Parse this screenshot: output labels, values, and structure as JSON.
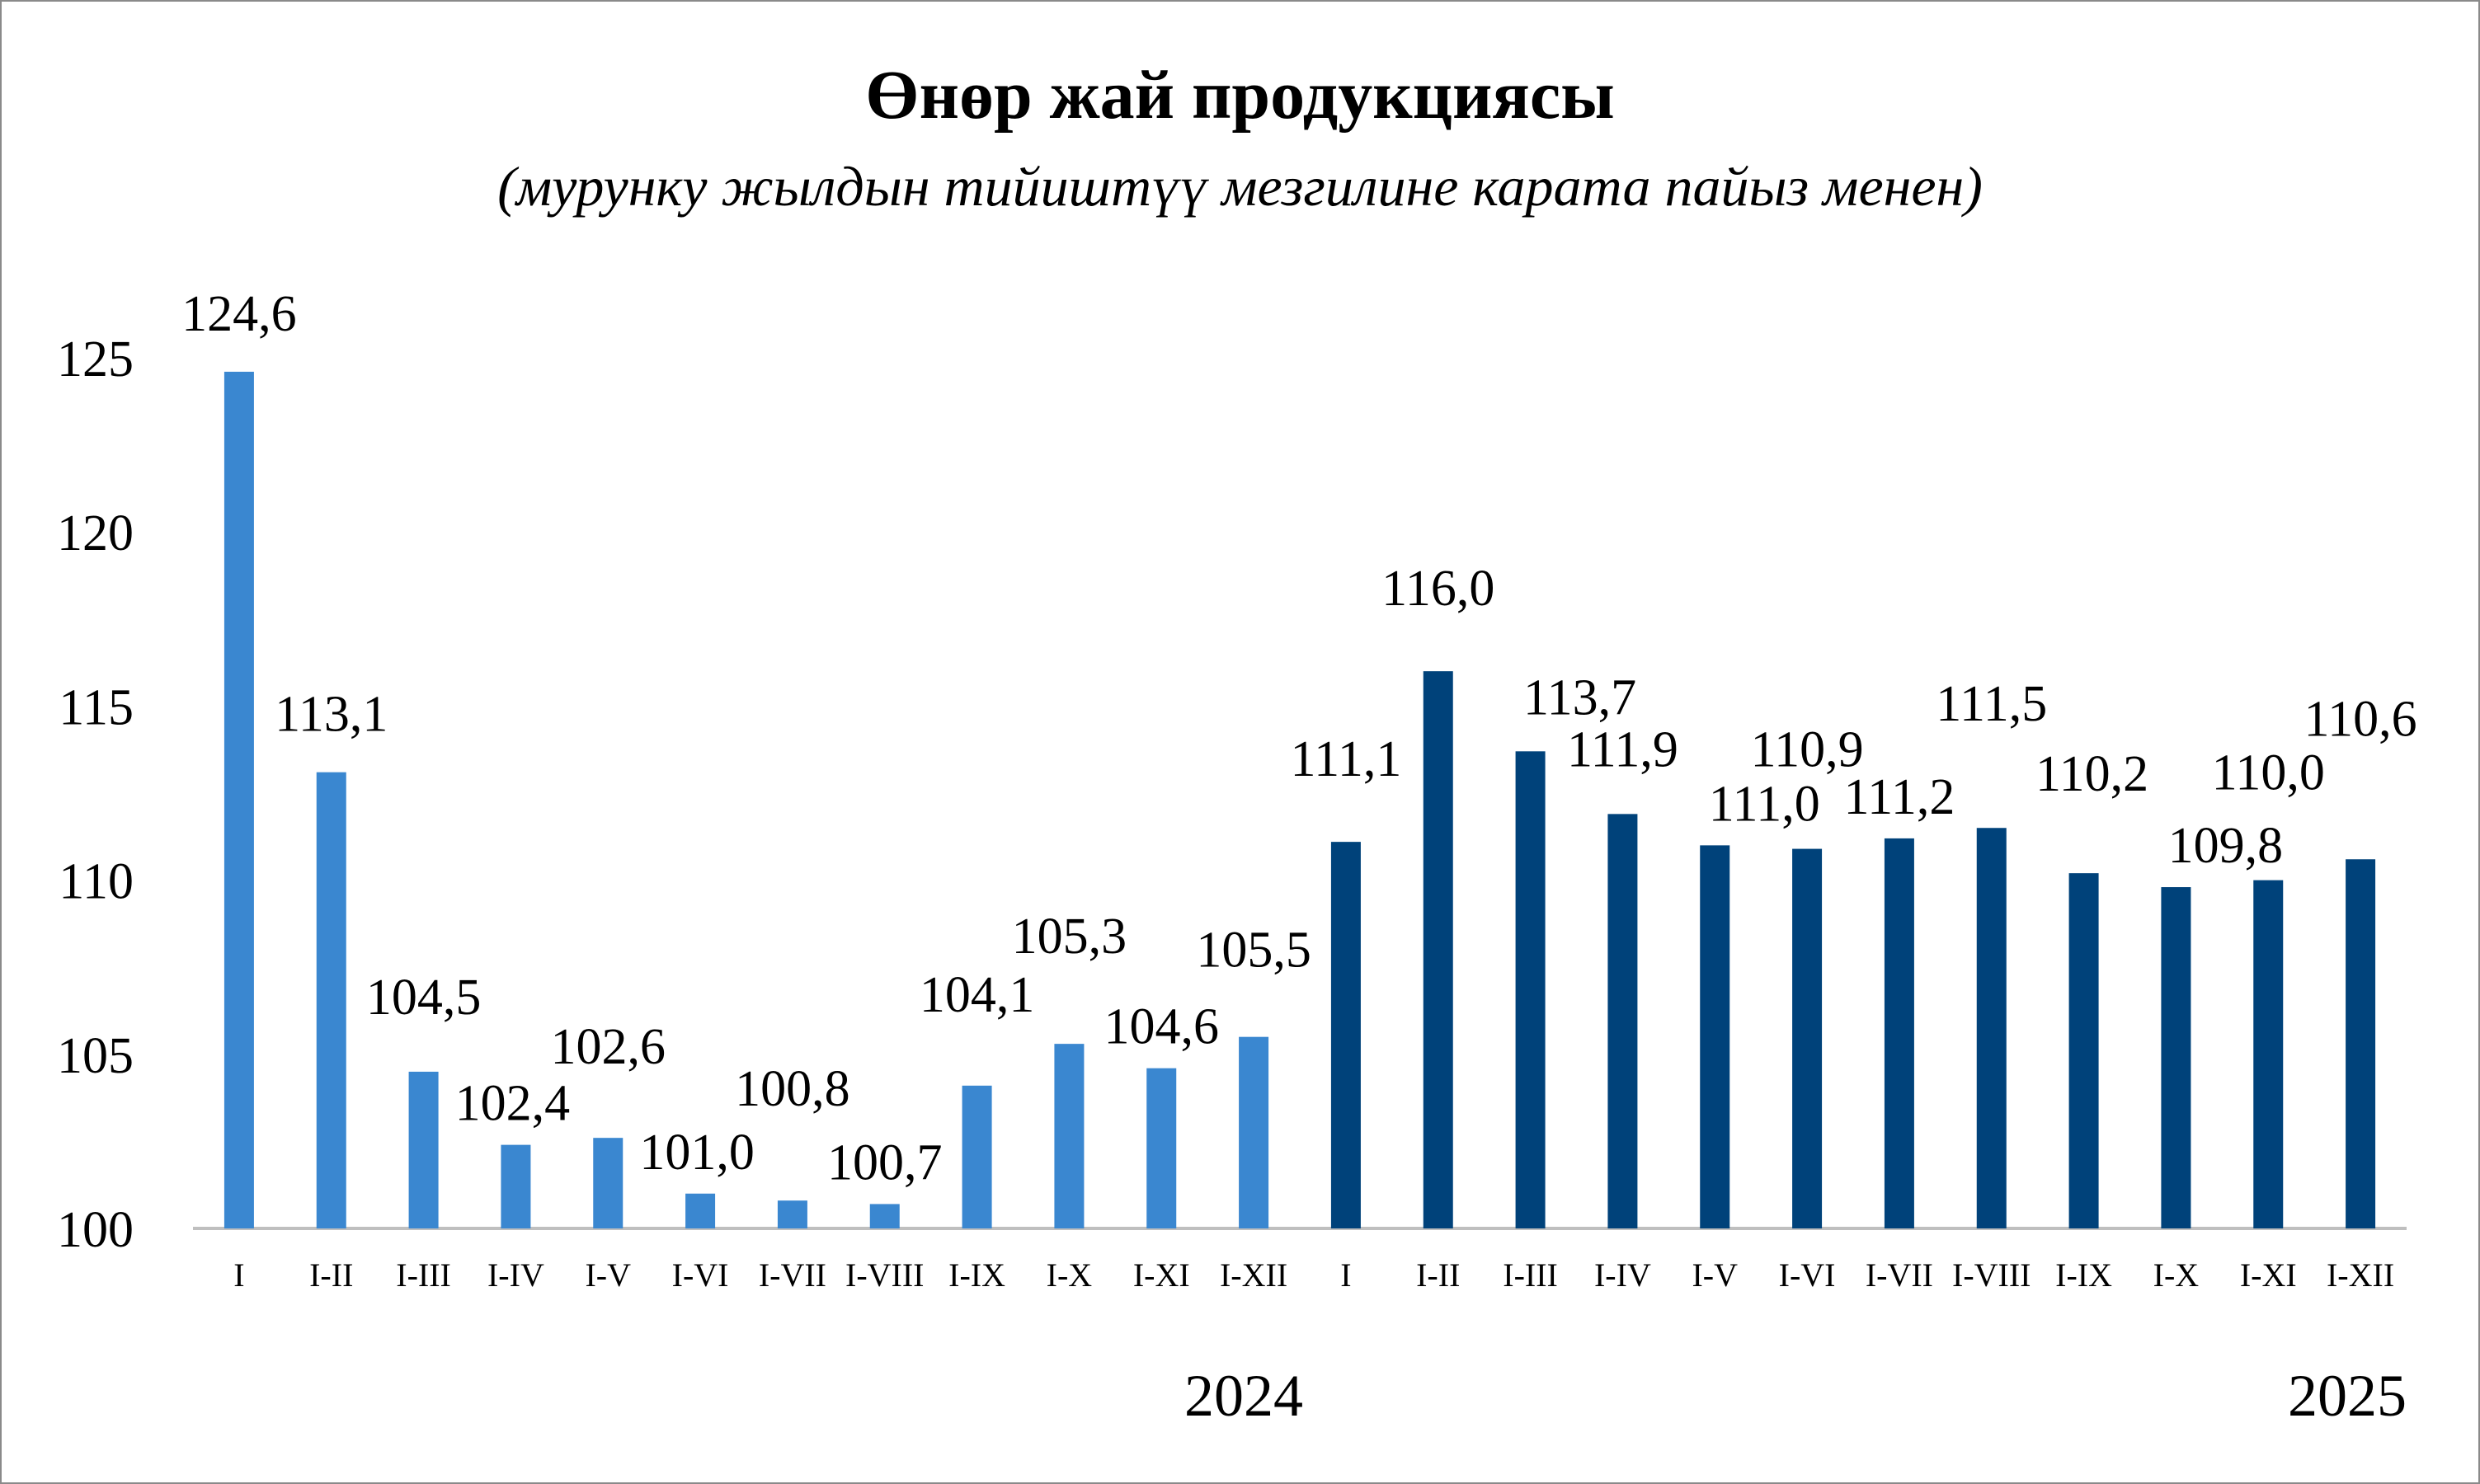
{
  "chart_data": {
    "type": "bar",
    "title": "Өнөр жай продукциясы",
    "subtitle": "(мурунку жылдын тийиштүү  мезгилине карата пайыз менен)",
    "xlabel": "",
    "ylabel": "",
    "ylim": [
      100,
      125
    ],
    "yticks": [
      "100",
      "105",
      "110",
      "115",
      "120",
      "125"
    ],
    "grid": false,
    "legend": "none",
    "categories": [
      "I",
      "I-II",
      "I-III",
      "I-IV",
      "I-V",
      "I-VI",
      "I-VII",
      "I-VIII",
      "I-IX",
      "I-X",
      "I-XI",
      "I-XII",
      "I",
      "I-II",
      "I-III",
      "I-IV",
      "I-V",
      "I-VI",
      "I-VII",
      "I-VIII",
      "I-IX",
      "I-X",
      "I-XI",
      "I-XII"
    ],
    "values": [
      124.6,
      113.1,
      104.5,
      102.4,
      102.6,
      101.0,
      100.8,
      100.7,
      104.1,
      105.3,
      104.6,
      105.5,
      111.1,
      116.0,
      113.7,
      111.9,
      111.0,
      110.9,
      111.2,
      111.5,
      110.2,
      109.8,
      110.0,
      110.6
    ],
    "value_labels": [
      "124,6",
      "113,1",
      "104,5",
      "102,4",
      "102,6",
      "101,0",
      "100,8",
      "100,7",
      "104,1",
      "105,3",
      "104,6",
      "105,5",
      "111,1",
      "116,0",
      "113,7",
      "111,9",
      "111,0",
      "110,9",
      "111,2",
      "111,5",
      "110,2",
      "109,8",
      "110,0",
      "110,6"
    ],
    "groups": [
      {
        "label": "2024",
        "color": "#3A87D0"
      },
      {
        "label": "2025",
        "color": "#00427A"
      }
    ],
    "group_of_bar": [
      0,
      0,
      0,
      0,
      0,
      0,
      0,
      0,
      0,
      0,
      0,
      0,
      1,
      1,
      1,
      1,
      1,
      1,
      1,
      1,
      1,
      1,
      1,
      1
    ],
    "axis_color": "#BFBFBF"
  }
}
